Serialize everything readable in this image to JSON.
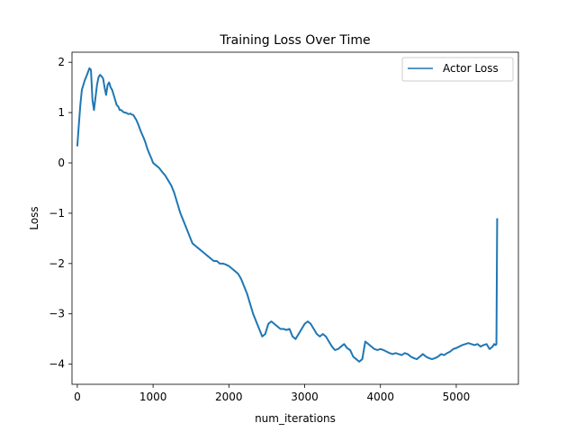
{
  "chart_data": {
    "type": "line",
    "title": "Training Loss Over Time",
    "xlabel": "num_iterations",
    "ylabel": "Loss",
    "xlim": [
      -70,
      5820
    ],
    "ylim": [
      -4.4,
      2.2
    ],
    "xticks": [
      0,
      1000,
      2000,
      3000,
      4000,
      5000
    ],
    "yticks": [
      -4,
      -3,
      -2,
      -1,
      0,
      1,
      2
    ],
    "xtick_labels": [
      "0",
      "1000",
      "2000",
      "3000",
      "4000",
      "5000"
    ],
    "ytick_labels": [
      "−4",
      "−3",
      "−2",
      "−1",
      "0",
      "1",
      "2"
    ],
    "grid": false,
    "legend_position": "top-right",
    "series": [
      {
        "name": "Actor Loss",
        "color": "#1f77b4",
        "x": [
          0,
          20,
          40,
          60,
          80,
          100,
          120,
          140,
          160,
          180,
          200,
          220,
          240,
          260,
          280,
          300,
          320,
          340,
          360,
          380,
          400,
          420,
          440,
          460,
          480,
          500,
          520,
          540,
          560,
          580,
          600,
          620,
          640,
          660,
          680,
          700,
          720,
          740,
          760,
          780,
          800,
          820,
          840,
          860,
          880,
          900,
          920,
          940,
          960,
          980,
          1000,
          1040,
          1080,
          1120,
          1160,
          1200,
          1240,
          1280,
          1320,
          1360,
          1400,
          1440,
          1480,
          1520,
          1560,
          1600,
          1640,
          1680,
          1720,
          1760,
          1800,
          1840,
          1880,
          1920,
          1960,
          2000,
          2040,
          2080,
          2120,
          2160,
          2200,
          2240,
          2280,
          2320,
          2360,
          2400,
          2440,
          2480,
          2520,
          2560,
          2600,
          2640,
          2680,
          2720,
          2760,
          2800,
          2840,
          2880,
          2920,
          2960,
          3000,
          3040,
          3080,
          3120,
          3160,
          3200,
          3240,
          3280,
          3320,
          3360,
          3400,
          3440,
          3480,
          3520,
          3560,
          3600,
          3640,
          3680,
          3720,
          3760,
          3800,
          3840,
          3880,
          3920,
          3960,
          4000,
          4040,
          4080,
          4120,
          4160,
          4200,
          4240,
          4280,
          4320,
          4360,
          4400,
          4440,
          4480,
          4520,
          4560,
          4600,
          4640,
          4680,
          4720,
          4760,
          4800,
          4840,
          4880,
          4920,
          4960,
          5000,
          5040,
          5080,
          5120,
          5160,
          5200,
          5240,
          5280,
          5320,
          5360,
          5400,
          5440,
          5480,
          5500,
          5520,
          5530,
          5540
        ],
        "y": [
          0.33,
          0.75,
          1.15,
          1.45,
          1.55,
          1.65,
          1.72,
          1.8,
          1.88,
          1.85,
          1.25,
          1.05,
          1.3,
          1.55,
          1.7,
          1.75,
          1.72,
          1.68,
          1.5,
          1.35,
          1.55,
          1.6,
          1.5,
          1.45,
          1.35,
          1.25,
          1.15,
          1.12,
          1.05,
          1.05,
          1.02,
          1.0,
          1.0,
          0.98,
          0.97,
          0.98,
          0.96,
          0.95,
          0.9,
          0.85,
          0.78,
          0.7,
          0.62,
          0.55,
          0.48,
          0.4,
          0.3,
          0.22,
          0.15,
          0.08,
          0.0,
          -0.05,
          -0.1,
          -0.18,
          -0.25,
          -0.35,
          -0.45,
          -0.6,
          -0.8,
          -1.0,
          -1.15,
          -1.3,
          -1.45,
          -1.6,
          -1.65,
          -1.7,
          -1.75,
          -1.8,
          -1.85,
          -1.9,
          -1.95,
          -1.95,
          -2.0,
          -2.0,
          -2.02,
          -2.05,
          -2.1,
          -2.15,
          -2.2,
          -2.3,
          -2.45,
          -2.6,
          -2.8,
          -3.0,
          -3.15,
          -3.3,
          -3.45,
          -3.4,
          -3.2,
          -3.15,
          -3.2,
          -3.25,
          -3.3,
          -3.3,
          -3.32,
          -3.3,
          -3.45,
          -3.5,
          -3.4,
          -3.3,
          -3.2,
          -3.15,
          -3.2,
          -3.3,
          -3.4,
          -3.45,
          -3.4,
          -3.45,
          -3.55,
          -3.65,
          -3.72,
          -3.7,
          -3.65,
          -3.6,
          -3.68,
          -3.72,
          -3.85,
          -3.9,
          -3.95,
          -3.9,
          -3.55,
          -3.6,
          -3.65,
          -3.7,
          -3.72,
          -3.7,
          -3.72,
          -3.75,
          -3.78,
          -3.8,
          -3.78,
          -3.8,
          -3.82,
          -3.78,
          -3.8,
          -3.85,
          -3.88,
          -3.9,
          -3.85,
          -3.8,
          -3.85,
          -3.88,
          -3.9,
          -3.88,
          -3.85,
          -3.8,
          -3.82,
          -3.78,
          -3.75,
          -3.7,
          -3.68,
          -3.65,
          -3.62,
          -3.6,
          -3.58,
          -3.6,
          -3.62,
          -3.6,
          -3.65,
          -3.62,
          -3.6,
          -3.7,
          -3.65,
          -3.6,
          -3.62,
          -3.6,
          -1.1
        ]
      }
    ]
  }
}
